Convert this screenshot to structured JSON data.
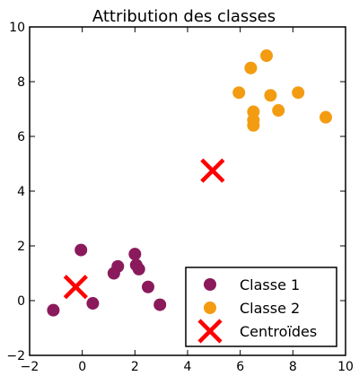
{
  "chart_data": {
    "type": "scatter",
    "title": "Attribution des classes",
    "xlabel": "",
    "ylabel": "",
    "xlim": [
      -2,
      10
    ],
    "ylim": [
      -2,
      10
    ],
    "x_ticks": [
      -2,
      0,
      2,
      4,
      6,
      8,
      10
    ],
    "y_ticks": [
      -2,
      0,
      2,
      4,
      6,
      8,
      10
    ],
    "grid": false,
    "legend_position": "bottom-right",
    "series": [
      {
        "name": "Classe 1",
        "marker": "circle",
        "color": "#8B1A5C",
        "points": [
          [
            -1.1,
            -0.35
          ],
          [
            -0.05,
            1.85
          ],
          [
            0.4,
            -0.1
          ],
          [
            1.2,
            1.0
          ],
          [
            1.35,
            1.25
          ],
          [
            2.0,
            1.7
          ],
          [
            2.05,
            1.3
          ],
          [
            2.15,
            1.15
          ],
          [
            2.5,
            0.5
          ],
          [
            2.95,
            -0.15
          ]
        ]
      },
      {
        "name": "Classe 2",
        "marker": "circle",
        "color": "#F39C12",
        "points": [
          [
            5.95,
            7.6
          ],
          [
            6.4,
            8.5
          ],
          [
            6.5,
            6.9
          ],
          [
            6.5,
            6.6
          ],
          [
            6.5,
            6.4
          ],
          [
            7.0,
            8.95
          ],
          [
            7.15,
            7.5
          ],
          [
            7.45,
            6.95
          ],
          [
            8.2,
            7.6
          ],
          [
            9.25,
            6.7
          ]
        ]
      },
      {
        "name": "Centroïdes",
        "marker": "x",
        "color": "#FF0000",
        "points": [
          [
            -0.25,
            0.5
          ],
          [
            4.95,
            4.75
          ]
        ]
      }
    ]
  }
}
